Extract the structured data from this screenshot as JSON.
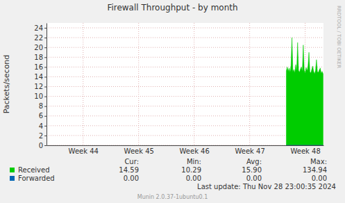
{
  "chart_data": {
    "type": "area",
    "title": "Firewall Throughput - by month",
    "y_label": "Packets/second",
    "side_text": "RRDTOOL / TOBI OETIKER",
    "footer": "Munin 2.0.37-1ubuntu0.1",
    "last_update": "Last update: Thu Nov 28 23:00:35 2024",
    "stats_labels": [
      "Cur:",
      "Min:",
      "Avg:",
      "Max:"
    ],
    "x": [
      48.16,
      48.177,
      48.194,
      48.211,
      48.228,
      48.245,
      48.262,
      48.279,
      48.296,
      48.313,
      48.33,
      48.347,
      48.364,
      48.381,
      48.398,
      48.415,
      48.432,
      48.449,
      48.466,
      48.483,
      48.5,
      48.517,
      48.534,
      48.551,
      48.568,
      48.585,
      48.602,
      48.619,
      48.636,
      48.653,
      48.67,
      48.687,
      48.704,
      48.721,
      48.738,
      48.755,
      48.772,
      48.789,
      48.806,
      48.823
    ],
    "series": [
      {
        "name": "Received",
        "color": "#00cc00",
        "type": "area",
        "values": [
          15.2,
          16.0,
          15.1,
          15.8,
          14.9,
          16.3,
          22.0,
          15.0,
          15.5,
          14.8,
          16.5,
          15.2,
          21.0,
          15.3,
          14.9,
          15.6,
          16.0,
          15.1,
          20.5,
          15.4,
          14.7,
          15.9,
          15.2,
          16.1,
          19.0,
          15.0,
          14.8,
          15.5,
          16.2,
          15.1,
          14.6,
          15.3,
          17.5,
          15.0,
          14.9,
          15.4,
          15.8,
          14.7,
          15.1,
          14.59
        ],
        "stats": [
          "14.59",
          "10.29",
          "15.90",
          "134.94"
        ]
      },
      {
        "name": "Forwarded",
        "color": "#0066b3",
        "type": "line",
        "values": [
          0,
          0,
          0,
          0,
          0,
          0,
          0,
          0,
          0,
          0,
          0,
          0,
          0,
          0,
          0,
          0,
          0,
          0,
          0,
          0,
          0,
          0,
          0,
          0,
          0,
          0,
          0,
          0,
          0,
          0,
          0,
          0,
          0,
          0,
          0,
          0,
          0,
          0,
          0,
          0
        ],
        "stats": [
          "0.00",
          "0.00",
          "0.00",
          "0.00"
        ]
      }
    ],
    "xlim": [
      43.84,
      48.83
    ],
    "xticks": [
      {
        "value": 44.5,
        "label": "Week 44"
      },
      {
        "value": 45.5,
        "label": "Week 45"
      },
      {
        "value": 46.5,
        "label": "Week 46"
      },
      {
        "value": 47.5,
        "label": "Week 47"
      },
      {
        "value": 48.5,
        "label": "Week 48"
      }
    ],
    "ylim": [
      0,
      25
    ],
    "yticks": [
      0,
      2,
      4,
      6,
      8,
      10,
      12,
      14,
      16,
      18,
      20,
      22,
      24
    ],
    "grid": true
  }
}
